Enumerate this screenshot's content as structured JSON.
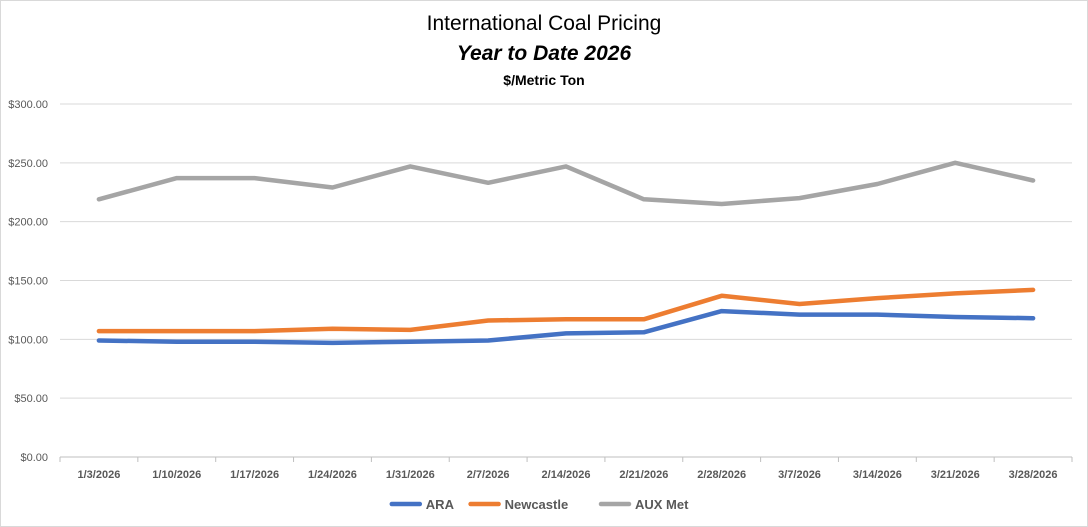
{
  "chart_data": {
    "type": "line",
    "title": "International Coal Pricing",
    "subtitle": "Year to Date 2026",
    "ylabel": "$/Metric Ton",
    "categories": [
      "1/3/2026",
      "1/10/2026",
      "1/17/2026",
      "1/24/2026",
      "1/31/2026",
      "2/7/2026",
      "2/14/2026",
      "2/21/2026",
      "2/28/2026",
      "3/7/2026",
      "3/14/2026",
      "3/21/2026",
      "3/28/2026"
    ],
    "series": [
      {
        "name": "ARA",
        "color": "#4472c4",
        "values": [
          99,
          98,
          98,
          97,
          98,
          99,
          105,
          106,
          124,
          121,
          121,
          119,
          118
        ]
      },
      {
        "name": "Newcastle",
        "color": "#ed7d31",
        "values": [
          107,
          107,
          107,
          109,
          108,
          116,
          117,
          117,
          137,
          130,
          135,
          139,
          142
        ]
      },
      {
        "name": "AUX Met",
        "color": "#a5a5a5",
        "values": [
          219,
          237,
          237,
          229,
          247,
          233,
          247,
          219,
          215,
          220,
          232,
          250,
          235
        ]
      }
    ],
    "yticks": [
      "$0.00",
      "$50.00",
      "$100.00",
      "$150.00",
      "$200.00",
      "$250.00",
      "$300.00"
    ],
    "ylim": [
      0,
      300
    ],
    "grid": true,
    "legend": "bottom"
  }
}
